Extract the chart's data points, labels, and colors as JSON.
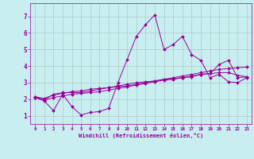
{
  "xlabel": "Windchill (Refroidissement éolien,°C)",
  "background_color": "#c8eef0",
  "grid_color": "#b0c8c8",
  "line_color": "#990099",
  "spine_color": "#990099",
  "x_ticks": [
    0,
    1,
    2,
    3,
    4,
    5,
    6,
    7,
    8,
    9,
    10,
    11,
    12,
    13,
    14,
    15,
    16,
    17,
    18,
    19,
    20,
    21,
    22,
    23
  ],
  "y_ticks": [
    1,
    2,
    3,
    4,
    5,
    6,
    7
  ],
  "xlim": [
    -0.5,
    23.5
  ],
  "ylim": [
    0.5,
    7.8
  ],
  "series": [
    {
      "x": [
        0,
        1,
        2,
        3,
        4,
        5,
        6,
        7,
        8,
        9,
        10,
        11,
        12,
        13,
        14,
        15,
        16,
        17,
        18,
        19,
        20,
        21,
        22,
        23
      ],
      "y": [
        2.1,
        1.9,
        1.3,
        2.3,
        1.55,
        1.05,
        1.2,
        1.25,
        1.45,
        3.0,
        4.4,
        5.8,
        6.5,
        7.1,
        5.0,
        5.3,
        5.8,
        4.7,
        4.35,
        3.3,
        3.5,
        3.05,
        3.0,
        3.3
      ]
    },
    {
      "x": [
        0,
        1,
        2,
        3,
        4,
        5,
        6,
        7,
        8,
        9,
        10,
        11,
        12,
        13,
        14,
        15,
        16,
        17,
        18,
        19,
        20,
        21,
        22,
        23
      ],
      "y": [
        2.15,
        1.95,
        2.3,
        2.4,
        2.4,
        2.4,
        2.5,
        2.6,
        2.7,
        2.75,
        2.8,
        2.9,
        3.0,
        3.1,
        3.2,
        3.3,
        3.4,
        3.5,
        3.6,
        3.7,
        3.8,
        3.85,
        3.9,
        3.95
      ]
    },
    {
      "x": [
        0,
        1,
        2,
        3,
        4,
        5,
        6,
        7,
        8,
        9,
        10,
        11,
        12,
        13,
        14,
        15,
        16,
        17,
        18,
        19,
        20,
        21,
        22,
        23
      ],
      "y": [
        2.15,
        2.05,
        2.25,
        2.35,
        2.45,
        2.5,
        2.6,
        2.65,
        2.7,
        2.8,
        2.9,
        3.0,
        3.05,
        3.1,
        3.2,
        3.25,
        3.3,
        3.35,
        3.5,
        3.55,
        4.1,
        4.35,
        3.3,
        3.35
      ]
    },
    {
      "x": [
        0,
        1,
        2,
        3,
        4,
        5,
        6,
        7,
        8,
        9,
        10,
        11,
        12,
        13,
        14,
        15,
        16,
        17,
        18,
        19,
        20,
        21,
        22,
        23
      ],
      "y": [
        2.1,
        1.95,
        2.1,
        2.2,
        2.3,
        2.35,
        2.4,
        2.45,
        2.55,
        2.65,
        2.75,
        2.85,
        2.95,
        3.05,
        3.15,
        3.2,
        3.3,
        3.4,
        3.5,
        3.55,
        3.6,
        3.6,
        3.45,
        3.35
      ]
    }
  ]
}
